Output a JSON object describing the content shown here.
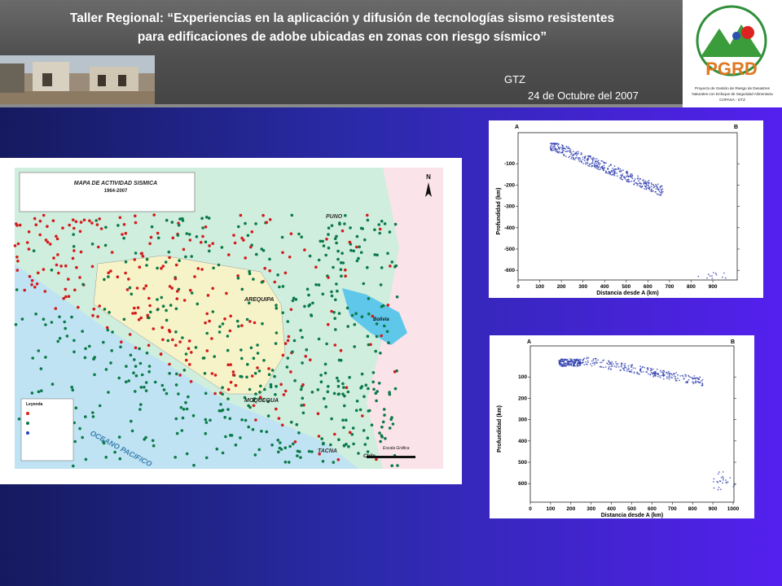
{
  "header": {
    "title_line1": "Taller Regional: “Experiencias en la aplicación y difusión de tecnologías sismo resistentes",
    "title_line2": "para edificaciones de adobe ubicadas en zonas con riesgo sísmico”",
    "organization": "GTZ",
    "date": "24 de Octubre del 2007"
  },
  "logo": {
    "acronym": "PGRD",
    "caption": [
      "Proyecto de Gestión de Riesgo de Desastres",
      "Naturales con Enfoque de Seguridad Alimentaria",
      "COPASA - GTZ"
    ]
  },
  "map": {
    "title": "MAPA DE ACTIVIDAD SISMICA",
    "period": "1964-2007",
    "north": "N",
    "labels": [
      "PUNO",
      "AREQUIPA",
      "MOQUEGUA",
      "TACNA",
      "Bolivia",
      "Chile",
      "OCEANO PACIFICO"
    ],
    "legend_title": "Leyenda",
    "scale_title": "Escala Gráfica"
  },
  "sections": [
    {
      "start": "A",
      "end": "B",
      "y_label": "Profundidad (km)",
      "x_label": "Distancia desde A (km)",
      "yticks": [
        "-100",
        "-200",
        "-300",
        "-400",
        "-500",
        "-600"
      ],
      "xticks": [
        "0",
        "100",
        "200",
        "300",
        "400",
        "500",
        "600",
        "700",
        "800",
        "900"
      ]
    },
    {
      "start": "A",
      "end": "B",
      "y_label": "Profundidad (km)",
      "x_label": "Distancia desde A (km)",
      "yticks": [
        "100",
        "200",
        "300",
        "400",
        "500",
        "600"
      ],
      "xticks": [
        "0",
        "100",
        "200",
        "300",
        "400",
        "500",
        "600",
        "700",
        "800",
        "900",
        "1000"
      ]
    }
  ]
}
